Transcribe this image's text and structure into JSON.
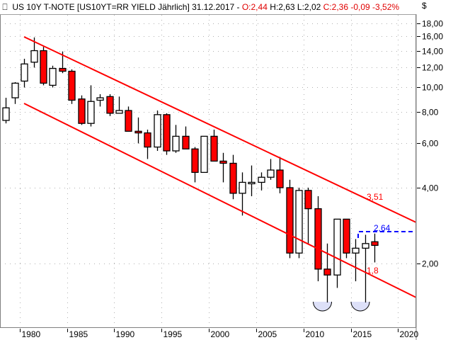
{
  "header": {
    "symbol_label": "US 10Y T-NOTE [US10YT=RR YIELD Jährlich] 31.12.2017 - ",
    "open": "O:2,44",
    "high": "H:2,63",
    "low": "L:2,02",
    "close": "C:2,36",
    "change": "-0,09",
    "change_pct": "-3,52%",
    "currency": "$"
  },
  "colors": {
    "up_fill": "#ffffff",
    "down_fill": "#ff0000",
    "channel": "#ff0000",
    "target": "#0000ff",
    "grid": "#b0b0b0",
    "highlight": "#dde0f8"
  },
  "annotations": {
    "upper_value": "3,51",
    "lower_value": "1,8",
    "target_value": "2,64"
  },
  "chart_data": {
    "type": "candlestick",
    "title": "US 10Y T-NOTE [US10YT=RR YIELD Jährlich]",
    "xlabel": "",
    "ylabel": "$",
    "y_scale": "log",
    "ylim": [
      1.4,
      19.5
    ],
    "y_ticks": [
      "18,00",
      "16,00",
      "14,00",
      "12,00",
      "10,00",
      "8,00",
      "6,00",
      "4,00",
      "2,00"
    ],
    "x_ticks": [
      "1980",
      "1985",
      "1990",
      "1995",
      "2000",
      "2005",
      "2010",
      "2015",
      "2020"
    ],
    "grid": true,
    "candles": [
      {
        "year": 1978,
        "o": 7.4,
        "h": 9.1,
        "l": 7.2,
        "c": 8.3
      },
      {
        "year": 1979,
        "o": 9.1,
        "h": 10.5,
        "l": 8.6,
        "c": 10.4
      },
      {
        "year": 1980,
        "o": 10.6,
        "h": 13.0,
        "l": 10.0,
        "c": 12.4
      },
      {
        "year": 1981,
        "o": 12.6,
        "h": 15.8,
        "l": 12.0,
        "c": 14.0
      },
      {
        "year": 1982,
        "o": 14.0,
        "h": 14.5,
        "l": 10.2,
        "c": 10.4
      },
      {
        "year": 1983,
        "o": 10.2,
        "h": 12.2,
        "l": 10.0,
        "c": 11.9
      },
      {
        "year": 1984,
        "o": 11.9,
        "h": 13.9,
        "l": 11.4,
        "c": 11.6
      },
      {
        "year": 1985,
        "o": 11.6,
        "h": 11.8,
        "l": 8.6,
        "c": 8.9
      },
      {
        "year": 1986,
        "o": 9.0,
        "h": 9.3,
        "l": 7.1,
        "c": 7.2
      },
      {
        "year": 1987,
        "o": 7.2,
        "h": 10.2,
        "l": 7.0,
        "c": 8.8
      },
      {
        "year": 1988,
        "o": 8.9,
        "h": 9.4,
        "l": 8.4,
        "c": 9.1
      },
      {
        "year": 1989,
        "o": 9.2,
        "h": 9.4,
        "l": 7.7,
        "c": 7.9
      },
      {
        "year": 1990,
        "o": 7.9,
        "h": 9.2,
        "l": 7.9,
        "c": 8.1
      },
      {
        "year": 1991,
        "o": 8.1,
        "h": 8.4,
        "l": 6.7,
        "c": 6.7
      },
      {
        "year": 1992,
        "o": 6.7,
        "h": 7.6,
        "l": 6.0,
        "c": 6.6
      },
      {
        "year": 1993,
        "o": 6.6,
        "h": 6.8,
        "l": 5.2,
        "c": 5.8
      },
      {
        "year": 1994,
        "o": 5.8,
        "h": 8.1,
        "l": 5.6,
        "c": 7.8
      },
      {
        "year": 1995,
        "o": 7.8,
        "h": 7.9,
        "l": 5.4,
        "c": 5.6
      },
      {
        "year": 1996,
        "o": 5.6,
        "h": 7.1,
        "l": 5.5,
        "c": 6.4
      },
      {
        "year": 1997,
        "o": 6.4,
        "h": 7.0,
        "l": 5.7,
        "c": 5.7
      },
      {
        "year": 1998,
        "o": 5.7,
        "h": 5.8,
        "l": 4.2,
        "c": 4.6
      },
      {
        "year": 1999,
        "o": 4.6,
        "h": 6.4,
        "l": 4.6,
        "c": 6.4
      },
      {
        "year": 2000,
        "o": 6.4,
        "h": 6.8,
        "l": 5.1,
        "c": 5.1
      },
      {
        "year": 2001,
        "o": 5.1,
        "h": 5.5,
        "l": 4.2,
        "c": 5.0
      },
      {
        "year": 2002,
        "o": 5.0,
        "h": 5.4,
        "l": 3.6,
        "c": 3.8
      },
      {
        "year": 2003,
        "o": 3.8,
        "h": 4.6,
        "l": 3.1,
        "c": 4.2
      },
      {
        "year": 2004,
        "o": 4.2,
        "h": 4.9,
        "l": 3.7,
        "c": 4.2
      },
      {
        "year": 2005,
        "o": 4.2,
        "h": 4.6,
        "l": 3.9,
        "c": 4.4
      },
      {
        "year": 2006,
        "o": 4.4,
        "h": 5.2,
        "l": 4.3,
        "c": 4.7
      },
      {
        "year": 2007,
        "o": 4.7,
        "h": 5.3,
        "l": 3.8,
        "c": 4.0
      },
      {
        "year": 2008,
        "o": 4.0,
        "h": 4.3,
        "l": 2.1,
        "c": 2.2
      },
      {
        "year": 2009,
        "o": 2.2,
        "h": 4.0,
        "l": 2.1,
        "c": 3.9
      },
      {
        "year": 2010,
        "o": 3.9,
        "h": 4.0,
        "l": 2.4,
        "c": 3.3
      },
      {
        "year": 2011,
        "o": 3.3,
        "h": 3.7,
        "l": 1.7,
        "c": 1.9
      },
      {
        "year": 2012,
        "o": 1.9,
        "h": 2.4,
        "l": 1.4,
        "c": 1.8
      },
      {
        "year": 2013,
        "o": 1.8,
        "h": 3.0,
        "l": 1.6,
        "c": 3.0
      },
      {
        "year": 2014,
        "o": 3.0,
        "h": 3.0,
        "l": 2.1,
        "c": 2.2
      },
      {
        "year": 2015,
        "o": 2.2,
        "h": 2.5,
        "l": 1.7,
        "c": 2.3
      },
      {
        "year": 2016,
        "o": 2.3,
        "h": 2.6,
        "l": 1.4,
        "c": 2.4
      },
      {
        "year": 2017,
        "o": 2.44,
        "h": 2.63,
        "l": 2.02,
        "c": 2.36
      }
    ],
    "channel": {
      "upper": {
        "x": [
          1981,
          2021
        ],
        "y": [
          15.8,
          2.9
        ]
      },
      "lower": {
        "x": [
          1981,
          2021
        ],
        "y": [
          8.6,
          1.5
        ]
      }
    },
    "annotations": [
      {
        "text": "3,51",
        "color": "#ff0000"
      },
      {
        "text": "1,8",
        "color": "#ff0000"
      },
      {
        "text": "2,64",
        "color": "#0000ff",
        "type": "horizontal_dashed"
      }
    ]
  }
}
